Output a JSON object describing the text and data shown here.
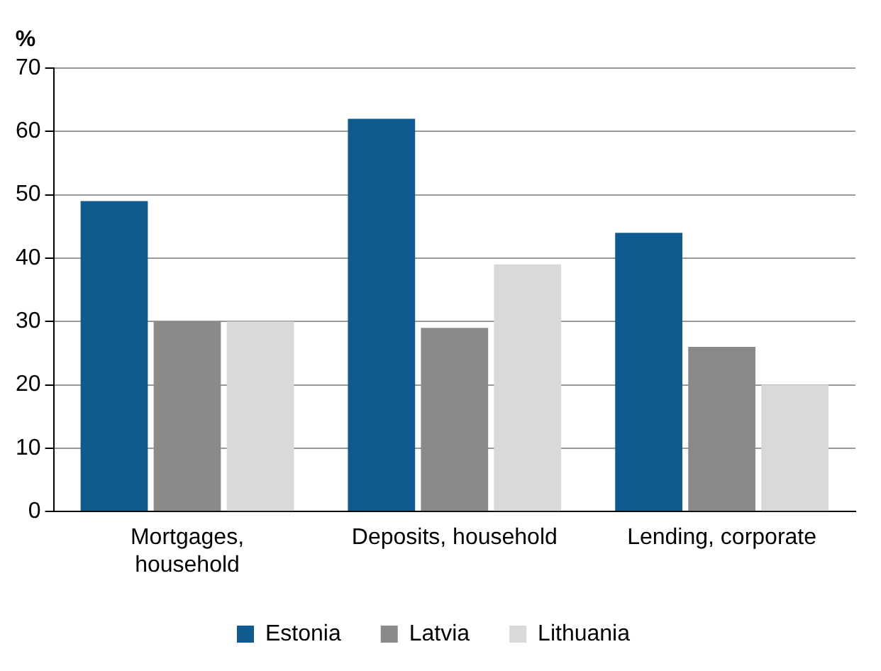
{
  "chart_data": {
    "type": "bar",
    "ylabel": "%",
    "categories": [
      "Mortgages, household",
      "Deposits, household",
      "Lending, corporate"
    ],
    "series": [
      {
        "name": "Estonia",
        "color": "#0f5a8f",
        "values": [
          49,
          62,
          44
        ]
      },
      {
        "name": "Latvia",
        "color": "#8a8a8a",
        "values": [
          30,
          29,
          26
        ]
      },
      {
        "name": "Lithuania",
        "color": "#d9d9d9",
        "values": [
          30,
          39,
          20
        ]
      }
    ],
    "ylim": [
      0,
      70
    ],
    "yticks": [
      0,
      10,
      20,
      30,
      40,
      50,
      60,
      70
    ],
    "grid": "y",
    "legend": "bottom"
  }
}
